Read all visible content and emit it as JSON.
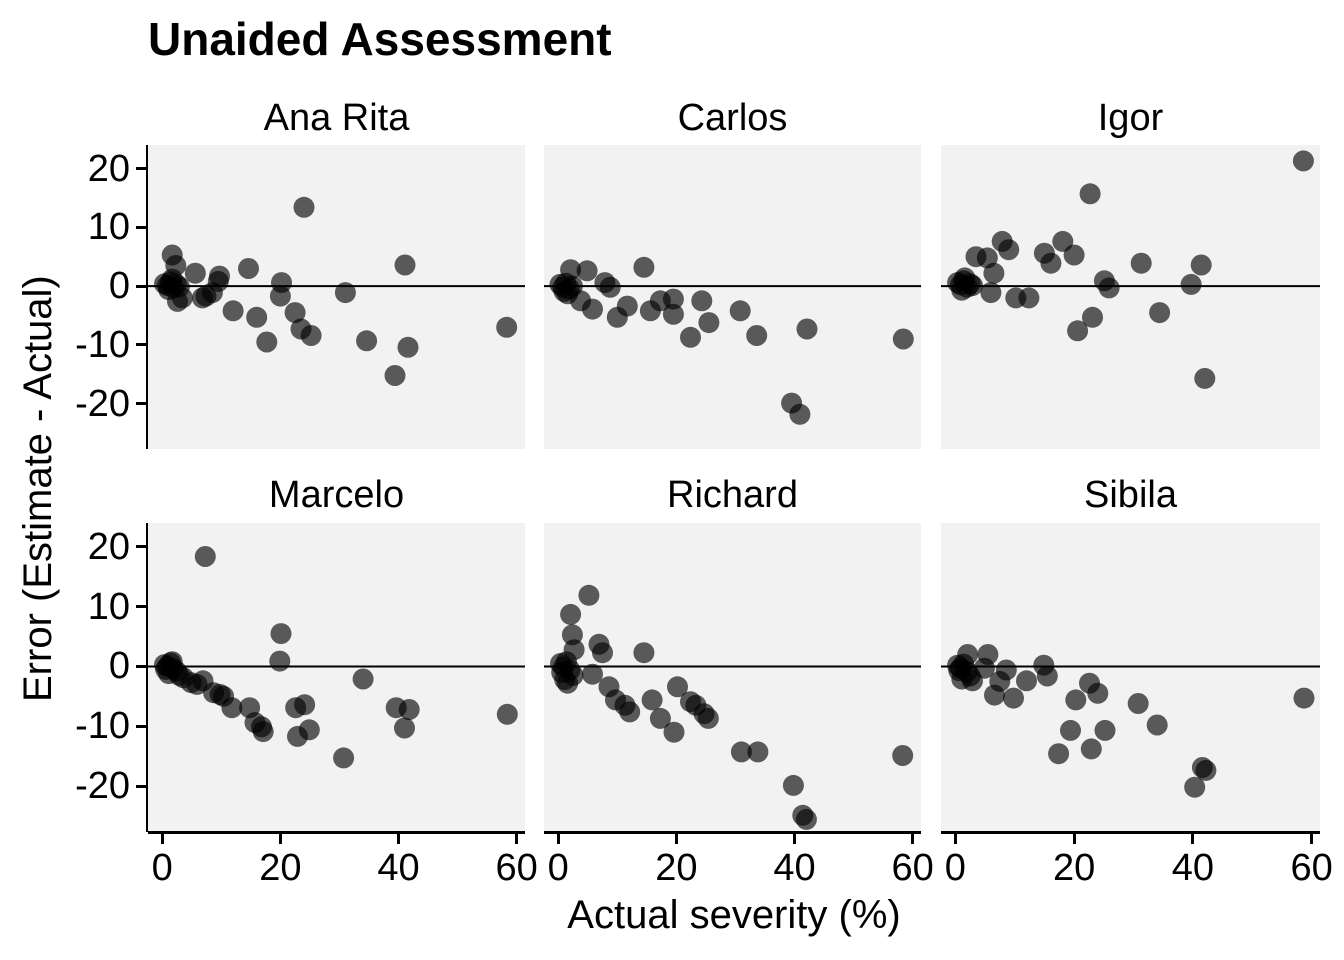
{
  "title": "Unaided Assessment",
  "colors": {
    "point": "#000000",
    "point_opacity": 0.63,
    "panel_bg": "#f2f2f2",
    "axis": "#000000",
    "text": "#000000"
  },
  "chart_data": {
    "type": "scatter",
    "title": "Unaided Assessment",
    "xlabel": "Actual severity (%)",
    "ylabel": "Error (Estimate - Actual)",
    "grid": "off",
    "reference_line_y": 0,
    "x_ticks": [
      0,
      20,
      40,
      60
    ],
    "y_ticks": [
      20,
      10,
      0,
      -10,
      -20
    ],
    "x_domain": [
      -2.4,
      61.4
    ],
    "y_domain": [
      -27.7,
      24.0
    ],
    "facets": [
      {
        "name": "Ana Rita",
        "points": [
          [
            0.4,
            0.4
          ],
          [
            0.9,
            0.1
          ],
          [
            1.4,
            0.7
          ],
          [
            1.9,
            -0.3
          ],
          [
            2.4,
            0.3
          ],
          [
            1.1,
            -0.6
          ],
          [
            2.9,
            -0.1
          ],
          [
            1.7,
            1.2
          ],
          [
            1.7,
            5.3
          ],
          [
            2.3,
            3.5
          ],
          [
            5.6,
            2.2
          ],
          [
            9.7,
            1.7
          ],
          [
            9.5,
            0.8
          ],
          [
            14.6,
            3.0
          ],
          [
            2.6,
            -2.6
          ],
          [
            3.4,
            -2.0
          ],
          [
            6.8,
            -2.0
          ],
          [
            7.4,
            -1.7
          ],
          [
            8.5,
            -1.1
          ],
          [
            12,
            -4.2
          ],
          [
            16,
            -5.3
          ],
          [
            17.7,
            -9.5
          ],
          [
            20.2,
            0.6
          ],
          [
            20,
            -1.7
          ],
          [
            22.5,
            -4.5
          ],
          [
            23.5,
            -7.3
          ],
          [
            25.2,
            -8.4
          ],
          [
            31,
            -1.1
          ],
          [
            34.6,
            -9.3
          ],
          [
            39.4,
            -15.2
          ],
          [
            41.1,
            3.6
          ],
          [
            41.6,
            -10.4
          ],
          [
            24,
            13.4
          ],
          [
            58.3,
            -7.0
          ]
        ]
      },
      {
        "name": "Carlos",
        "points": [
          [
            0.3,
            0.3
          ],
          [
            0.8,
            -0.2
          ],
          [
            1.3,
            0.5
          ],
          [
            1.9,
            -0.5
          ],
          [
            2.4,
            0
          ],
          [
            1,
            -0.9
          ],
          [
            1.6,
            -1.3
          ],
          [
            2.1,
            2.8
          ],
          [
            4.9,
            2.6
          ],
          [
            7.9,
            0.6
          ],
          [
            8.8,
            -0.2
          ],
          [
            3.8,
            -2.5
          ],
          [
            5.8,
            -3.9
          ],
          [
            10,
            -5.3
          ],
          [
            11.7,
            -3.4
          ],
          [
            14.5,
            3.2
          ],
          [
            15.6,
            -4.2
          ],
          [
            17.3,
            -2.5
          ],
          [
            19.5,
            -2.2
          ],
          [
            19.5,
            -4.8
          ],
          [
            22.4,
            -8.7
          ],
          [
            24.3,
            -2.5
          ],
          [
            25.5,
            -6.2
          ],
          [
            30.8,
            -4.2
          ],
          [
            33.6,
            -8.4
          ],
          [
            42.1,
            -7.3
          ],
          [
            39.5,
            -19.9
          ],
          [
            40.9,
            -21.8
          ],
          [
            58.4,
            -9.0
          ]
        ]
      },
      {
        "name": "Igor",
        "points": [
          [
            0.4,
            0.6
          ],
          [
            0.9,
            0.2
          ],
          [
            1.4,
            0.9
          ],
          [
            2,
            -0.2
          ],
          [
            2.5,
            0.4
          ],
          [
            1.1,
            -0.7
          ],
          [
            2.9,
            0.1
          ],
          [
            1.6,
            1.4
          ],
          [
            3.5,
            5.0
          ],
          [
            5.4,
            4.8
          ],
          [
            7.9,
            7.6
          ],
          [
            9,
            6.2
          ],
          [
            6.5,
            2.2
          ],
          [
            6,
            -1.1
          ],
          [
            10.2,
            -2.0
          ],
          [
            12.4,
            -2.0
          ],
          [
            15,
            5.6
          ],
          [
            16.1,
            3.9
          ],
          [
            18.1,
            7.6
          ],
          [
            20,
            5.3
          ],
          [
            22.7,
            15.7
          ],
          [
            20.6,
            -7.6
          ],
          [
            23.1,
            -5.3
          ],
          [
            25.1,
            0.9
          ],
          [
            25.9,
            -0.3
          ],
          [
            31.3,
            3.9
          ],
          [
            34.4,
            -4.5
          ],
          [
            39.7,
            0.3
          ],
          [
            41.4,
            3.6
          ],
          [
            42,
            -15.7
          ],
          [
            58.6,
            21.3
          ]
        ]
      },
      {
        "name": "Marcelo",
        "points": [
          [
            0.4,
            0.3
          ],
          [
            0.9,
            0
          ],
          [
            1.4,
            0.6
          ],
          [
            1.9,
            -0.4
          ],
          [
            2.4,
            -0.8
          ],
          [
            1.1,
            -1.2
          ],
          [
            2.9,
            -1.5
          ],
          [
            0.6,
            -0.5
          ],
          [
            1.7,
            0.8
          ],
          [
            7.3,
            18.4
          ],
          [
            3.6,
            -1.9
          ],
          [
            4.9,
            -2.7
          ],
          [
            5.9,
            -3.0
          ],
          [
            6.9,
            -2.4
          ],
          [
            8.7,
            -4.4
          ],
          [
            9.8,
            -4.7
          ],
          [
            10.4,
            -5.0
          ],
          [
            11.8,
            -6.9
          ],
          [
            14.8,
            -6.9
          ],
          [
            15.7,
            -9.4
          ],
          [
            16.8,
            -10.1
          ],
          [
            17.1,
            -10.9
          ],
          [
            20.1,
            5.5
          ],
          [
            19.9,
            0.9
          ],
          [
            22.6,
            -6.9
          ],
          [
            24.1,
            -6.4
          ],
          [
            22.9,
            -11.7
          ],
          [
            24.9,
            -10.6
          ],
          [
            30.7,
            -15.3
          ],
          [
            34,
            -2.1
          ],
          [
            39.6,
            -6.9
          ],
          [
            41.8,
            -7.2
          ],
          [
            41,
            -10.3
          ],
          [
            58.4,
            -8.0
          ]
        ]
      },
      {
        "name": "Richard",
        "points": [
          [
            0.4,
            0.5
          ],
          [
            0.9,
            -0.1
          ],
          [
            1.4,
            0.8
          ],
          [
            2,
            -0.6
          ],
          [
            2.5,
            -1.5
          ],
          [
            1.1,
            -2.2
          ],
          [
            1.6,
            -2.8
          ],
          [
            0.6,
            -1.0
          ],
          [
            5.2,
            11.9
          ],
          [
            2.1,
            8.7
          ],
          [
            2.4,
            5.3
          ],
          [
            2.7,
            2.8
          ],
          [
            6.9,
            3.7
          ],
          [
            7.5,
            2.3
          ],
          [
            14.5,
            2.3
          ],
          [
            5.8,
            -1.3
          ],
          [
            8.6,
            -3.4
          ],
          [
            9.7,
            -5.6
          ],
          [
            11.3,
            -6.5
          ],
          [
            12.1,
            -7.6
          ],
          [
            15.9,
            -5.6
          ],
          [
            17.3,
            -8.7
          ],
          [
            19.6,
            -11.0
          ],
          [
            20.2,
            -3.4
          ],
          [
            22.4,
            -5.9
          ],
          [
            23.3,
            -6.5
          ],
          [
            24.7,
            -7.9
          ],
          [
            25.4,
            -8.7
          ],
          [
            31,
            -14.3
          ],
          [
            33.8,
            -14.3
          ],
          [
            39.8,
            -19.9
          ],
          [
            41.4,
            -24.9
          ],
          [
            42,
            -25.6
          ],
          [
            58.3,
            -14.9
          ]
        ]
      },
      {
        "name": "Sibila",
        "points": [
          [
            0.4,
            0.2
          ],
          [
            0.9,
            -0.3
          ],
          [
            1.4,
            0.4
          ],
          [
            2,
            -0.9
          ],
          [
            2.5,
            -1.6
          ],
          [
            1.1,
            -2.1
          ],
          [
            2.9,
            -2.4
          ],
          [
            0.6,
            -0.7
          ],
          [
            2.1,
            2.0
          ],
          [
            5.5,
            2.0
          ],
          [
            4.9,
            -0.3
          ],
          [
            8.6,
            -0.6
          ],
          [
            7.5,
            -2.5
          ],
          [
            6.6,
            -4.8
          ],
          [
            9.8,
            -5.3
          ],
          [
            12,
            -2.4
          ],
          [
            14.9,
            0.2
          ],
          [
            15.5,
            -1.6
          ],
          [
            20.3,
            -5.6
          ],
          [
            22.6,
            -2.8
          ],
          [
            24,
            -4.5
          ],
          [
            19.4,
            -10.7
          ],
          [
            25.2,
            -10.7
          ],
          [
            17.4,
            -14.6
          ],
          [
            22.9,
            -13.8
          ],
          [
            30.8,
            -6.2
          ],
          [
            34,
            -9.8
          ],
          [
            41.6,
            -16.9
          ],
          [
            42.2,
            -17.4
          ],
          [
            40.3,
            -20.2
          ],
          [
            58.7,
            -5.3
          ]
        ]
      }
    ]
  }
}
